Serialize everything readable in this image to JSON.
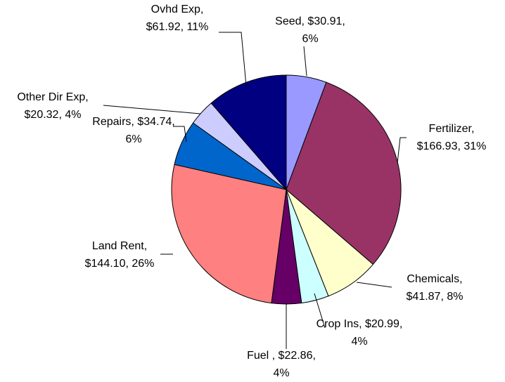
{
  "chart_data": {
    "type": "pie",
    "values": [
      30.91,
      166.93,
      41.87,
      20.99,
      22.86,
      144.1,
      34.74,
      20.32,
      61.92
    ],
    "value_labels": [
      [
        "Seed, $30.91,",
        "6%"
      ],
      [
        "Fertilizer,",
        "$166.93, 31%"
      ],
      [
        "Chemicals,",
        "$41.87, 8%"
      ],
      [
        "Crop Ins, $20.99,",
        "4%"
      ],
      [
        "Fuel  , $22.86,",
        "4%"
      ],
      [
        "Land Rent,",
        "$144.10, 26%"
      ],
      [
        "Repairs, $34.74,",
        "6%"
      ],
      [
        "Other Dir Exp,",
        "$20.32, 4%"
      ],
      [
        "Ovhd Exp,",
        "$61.92, 11%"
      ]
    ],
    "colors": [
      "#9999ff",
      "#993366",
      "#ffffcc",
      "#ccffff",
      "#660066",
      "#ff8080",
      "#0066cc",
      "#ccccff",
      "#000080"
    ]
  }
}
